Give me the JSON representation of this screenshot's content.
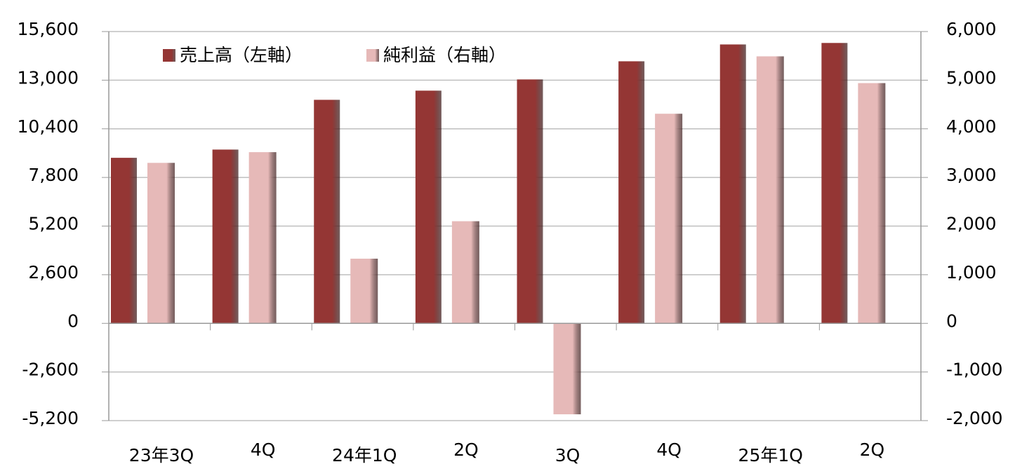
{
  "chart_data": {
    "type": "bar",
    "categories": [
      "23年3Q",
      "4Q",
      "24年1Q",
      "2Q",
      "3Q",
      "4Q",
      "25年1Q",
      "2Q"
    ],
    "series": [
      {
        "name": "売上高（左軸）",
        "color": "#943634",
        "values": [
          8850,
          9290,
          11950,
          12440,
          13040,
          14010,
          14910,
          14990
        ]
      },
      {
        "name": "純利益（右軸）",
        "color": "#e6b9b8",
        "axis": "y2",
        "values": [
          3300,
          3520,
          1330,
          2100,
          -1870,
          4310,
          5490,
          4940
        ]
      }
    ],
    "ylim": [
      -5200,
      15600
    ],
    "yticks": [
      {
        "value": -5200,
        "label": "-5,200"
      },
      {
        "value": -2600,
        "label": "-2,600"
      },
      0,
      {
        "value": 2600,
        "label": "2,600"
      },
      {
        "value": 5200,
        "label": "5,200"
      },
      {
        "value": 7800,
        "label": "7,800"
      },
      {
        "value": 10400,
        "label": "10,400"
      },
      {
        "value": 13000,
        "label": "13,000"
      },
      {
        "value": 15600,
        "label": "15,600"
      }
    ],
    "y2lim": [
      -2000,
      6000
    ],
    "y2ticks": [
      {
        "value": -2000,
        "label": "-2,000"
      },
      {
        "value": -1000,
        "label": "-1,000"
      },
      0,
      {
        "value": 1000,
        "label": "1,000"
      },
      {
        "value": 2000,
        "label": "2,000"
      },
      {
        "value": 3000,
        "label": "3,000"
      },
      {
        "value": 4000,
        "label": "4,000"
      },
      {
        "value": 5000,
        "label": "5,000"
      },
      {
        "value": 6000,
        "label": "6,000"
      }
    ],
    "grid": true,
    "negative_tick_color": "#ff0000",
    "legend": "top-left"
  }
}
